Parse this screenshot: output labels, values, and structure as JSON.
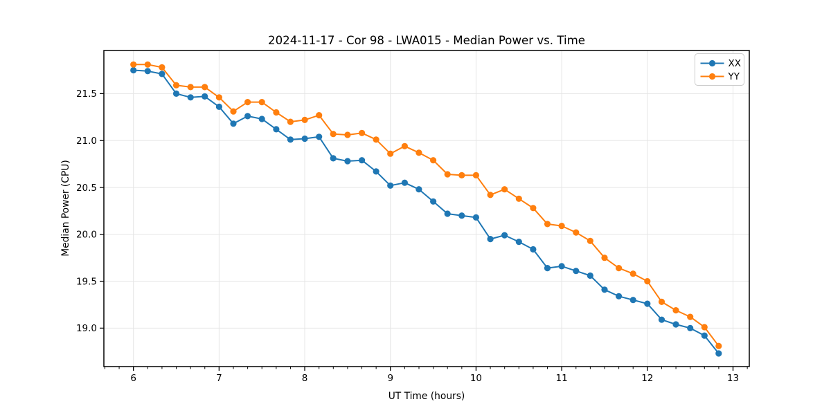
{
  "chart_data": {
    "type": "line",
    "title": "2024-11-17 - Cor 98 - LWA015 - Median Power vs. Time",
    "xlabel": "UT Time (hours)",
    "ylabel": "Median Power (CPU)",
    "xlim": [
      5.655,
      13.19
    ],
    "ylim": [
      18.59,
      21.96
    ],
    "x_ticks": [
      6,
      7,
      8,
      9,
      10,
      11,
      12,
      13
    ],
    "y_ticks": [
      19.0,
      19.5,
      20.0,
      20.5,
      21.0,
      21.5
    ],
    "x_minor_step": 0.16667,
    "grid": true,
    "legend": {
      "position": "upper right",
      "entries": [
        "XX",
        "YY"
      ]
    },
    "x": [
      6.0,
      6.167,
      6.333,
      6.5,
      6.667,
      6.833,
      7.0,
      7.167,
      7.333,
      7.5,
      7.667,
      7.833,
      8.0,
      8.167,
      8.333,
      8.5,
      8.667,
      8.833,
      9.0,
      9.167,
      9.333,
      9.5,
      9.667,
      9.833,
      10.0,
      10.167,
      10.333,
      10.5,
      10.667,
      10.833,
      11.0,
      11.167,
      11.333,
      11.5,
      11.667,
      11.833,
      12.0,
      12.167,
      12.333,
      12.5,
      12.667,
      12.833
    ],
    "series": [
      {
        "name": "XX",
        "color": "#1f77b4",
        "values": [
          21.75,
          21.74,
          21.71,
          21.5,
          21.46,
          21.47,
          21.36,
          21.18,
          21.26,
          21.23,
          21.12,
          21.01,
          21.02,
          21.04,
          20.81,
          20.78,
          20.79,
          20.67,
          20.52,
          20.55,
          20.48,
          20.35,
          20.22,
          20.2,
          20.18,
          19.95,
          19.99,
          19.92,
          19.84,
          19.64,
          19.66,
          19.61,
          19.56,
          19.41,
          19.34,
          19.3,
          19.26,
          19.09,
          19.04,
          19.0,
          18.92,
          18.73
        ]
      },
      {
        "name": "YY",
        "color": "#ff7f0e",
        "values": [
          21.81,
          21.81,
          21.78,
          21.59,
          21.57,
          21.57,
          21.46,
          21.31,
          21.41,
          21.41,
          21.3,
          21.2,
          21.22,
          21.27,
          21.07,
          21.06,
          21.08,
          21.01,
          20.86,
          20.94,
          20.87,
          20.79,
          20.64,
          20.63,
          20.63,
          20.42,
          20.48,
          20.38,
          20.28,
          20.11,
          20.09,
          20.02,
          19.93,
          19.75,
          19.64,
          19.58,
          19.5,
          19.28,
          19.19,
          19.12,
          19.01,
          18.81
        ]
      }
    ],
    "style": {
      "grid_color": "#e5e5e5",
      "spine_color": "#000000",
      "background": "#ffffff",
      "marker_radius": 4.6,
      "line_width": 2
    }
  }
}
